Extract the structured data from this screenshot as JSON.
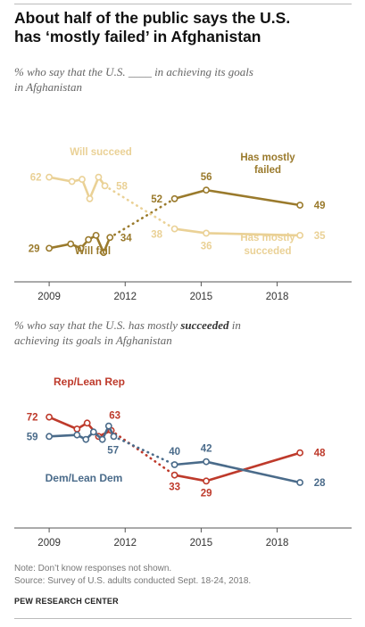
{
  "title_line1": "About half of the public says the U.S.",
  "title_line2": "has ‘mostly failed’ in Afghanistan",
  "chart1_subtitle_line1": "% who say that the U.S. ____ in achieving its goals",
  "chart1_subtitle_line2": "in Afghanistan",
  "chart2_subtitle_part1": "% who say that the U.S. has mostly ",
  "chart2_subtitle_bold": "succeeded",
  "chart2_subtitle_part2": " in",
  "chart2_subtitle_line2": "achieving its goals in Afghanistan",
  "note": "Note: Don’t know responses not shown.",
  "source": "Source: Survey of U.S. adults conducted Sept. 18-24, 2018.",
  "brand": "PEW RESEARCH CENTER",
  "colors": {
    "has_mostly_failed": "#9a7a2c",
    "has_mostly_succeeded": "#ead196",
    "rep_lean_rep": "#be3a2b",
    "dem_lean_dem": "#4a6b8a"
  },
  "chart_data": [
    {
      "type": "line",
      "x_ticks": [
        "2009",
        "2012",
        "2015",
        "2018"
      ],
      "xlim": [
        2008.75,
        2019.6
      ],
      "ylim": [
        25,
        66
      ],
      "grid": false,
      "series": [
        {
          "name": "Has mostly failed",
          "name_lines": [
            "Has mostly",
            "failed"
          ],
          "color_key": "has_mostly_failed",
          "points": [
            [
              2009.0,
              29
            ],
            [
              2009.85,
              31
            ],
            [
              2010.25,
              29
            ],
            [
              2010.55,
              33
            ],
            [
              2010.85,
              35
            ],
            [
              2011.15,
              27
            ],
            [
              2011.4,
              34
            ],
            [
              2013.95,
              52
            ],
            [
              2015.2,
              56
            ],
            [
              2018.9,
              49
            ]
          ],
          "dotted_segment": [
            6,
            7
          ],
          "labels": [
            {
              "text": "29",
              "at": 0
            },
            {
              "text": "34",
              "at": 6
            },
            {
              "text": "52",
              "at": 7
            },
            {
              "text": "56",
              "at": 8
            },
            {
              "text": "49",
              "at": 9
            }
          ]
        },
        {
          "name": "Has mostly succeded",
          "name_lines": [
            "Has mostly",
            "succeded"
          ],
          "color_key": "has_mostly_succeeded",
          "points": [
            [
              2009.0,
              62
            ],
            [
              2009.9,
              60
            ],
            [
              2010.3,
              61
            ],
            [
              2010.6,
              52
            ],
            [
              2010.95,
              62
            ],
            [
              2011.2,
              58
            ],
            [
              2013.95,
              38
            ],
            [
              2015.2,
              36
            ],
            [
              2018.9,
              35
            ]
          ],
          "dotted_segment": [
            5,
            6
          ],
          "labels": [
            {
              "text": "62",
              "at": 0
            },
            {
              "text": "58",
              "at": 5
            },
            {
              "text": "38",
              "at": 6
            },
            {
              "text": "36",
              "at": 7
            },
            {
              "text": "35",
              "at": 8
            }
          ]
        }
      ],
      "annotations": [
        "Will succeed",
        "Will fail"
      ]
    },
    {
      "type": "line",
      "x_ticks": [
        "2009",
        "2012",
        "2015",
        "2018"
      ],
      "xlim": [
        2008.75,
        2019.6
      ],
      "ylim": [
        25,
        76
      ],
      "grid": false,
      "series": [
        {
          "name": "Rep/Lean Rep",
          "color_key": "rep_lean_rep",
          "points": [
            [
              2009.0,
              72
            ],
            [
              2010.1,
              64
            ],
            [
              2010.5,
              68
            ],
            [
              2010.95,
              59
            ],
            [
              2011.45,
              63
            ],
            [
              2013.95,
              33
            ],
            [
              2015.2,
              29
            ],
            [
              2018.9,
              48
            ]
          ],
          "dotted_segment": [
            4,
            5
          ],
          "labels": [
            {
              "text": "72",
              "at": 0
            },
            {
              "text": "63",
              "at": 4
            },
            {
              "text": "33",
              "at": 5
            },
            {
              "text": "29",
              "at": 6
            },
            {
              "text": "48",
              "at": 7
            }
          ]
        },
        {
          "name": "Dem/Lean Dem",
          "color_key": "dem_lean_dem",
          "points": [
            [
              2009.0,
              59
            ],
            [
              2010.1,
              60
            ],
            [
              2010.45,
              57
            ],
            [
              2010.75,
              62
            ],
            [
              2011.1,
              57
            ],
            [
              2011.35,
              66
            ],
            [
              2011.55,
              59
            ],
            [
              2013.95,
              40
            ],
            [
              2015.2,
              42
            ],
            [
              2018.9,
              28
            ]
          ],
          "dotted_segment": [
            6,
            7
          ],
          "labels": [
            {
              "text": "59",
              "at": 0
            },
            {
              "text": "57",
              "at": 4
            },
            {
              "text": "40",
              "at": 7
            },
            {
              "text": "42",
              "at": 8
            },
            {
              "text": "28",
              "at": 9
            }
          ]
        }
      ]
    }
  ]
}
